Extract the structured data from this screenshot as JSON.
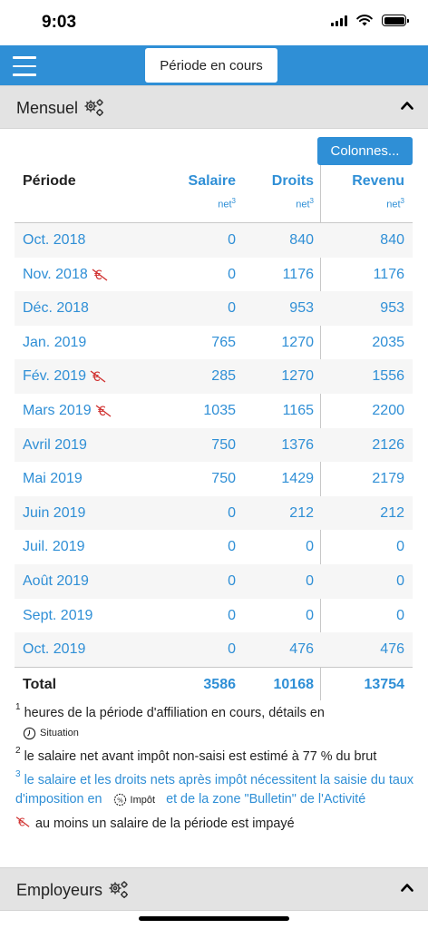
{
  "status": {
    "time": "9:03"
  },
  "nav": {
    "period_button": "Période en cours"
  },
  "sections": {
    "mensuel": {
      "title": "Mensuel"
    },
    "employeurs": {
      "title": "Employeurs"
    }
  },
  "columns_button": "Colonnes...",
  "table": {
    "headers": {
      "period": "Période",
      "salaire": "Salaire",
      "droits": "Droits",
      "revenu": "Revenu",
      "sub": "net",
      "sub_sup": "3"
    },
    "rows": [
      {
        "period": "Oct. 2018",
        "unpaid": false,
        "salaire": "0",
        "droits": "840",
        "revenu": "840"
      },
      {
        "period": "Nov. 2018",
        "unpaid": true,
        "salaire": "0",
        "droits": "1176",
        "revenu": "1176"
      },
      {
        "period": "Déc. 2018",
        "unpaid": false,
        "salaire": "0",
        "droits": "953",
        "revenu": "953"
      },
      {
        "period": "Jan. 2019",
        "unpaid": false,
        "salaire": "765",
        "droits": "1270",
        "revenu": "2035"
      },
      {
        "period": "Fév. 2019",
        "unpaid": true,
        "salaire": "285",
        "droits": "1270",
        "revenu": "1556"
      },
      {
        "period": "Mars 2019",
        "unpaid": true,
        "salaire": "1035",
        "droits": "1165",
        "revenu": "2200"
      },
      {
        "period": "Avril 2019",
        "unpaid": false,
        "salaire": "750",
        "droits": "1376",
        "revenu": "2126"
      },
      {
        "period": "Mai 2019",
        "unpaid": false,
        "salaire": "750",
        "droits": "1429",
        "revenu": "2179"
      },
      {
        "period": "Juin 2019",
        "unpaid": false,
        "salaire": "0",
        "droits": "212",
        "revenu": "212"
      },
      {
        "period": "Juil. 2019",
        "unpaid": false,
        "salaire": "0",
        "droits": "0",
        "revenu": "0"
      },
      {
        "period": "Août 2019",
        "unpaid": false,
        "salaire": "0",
        "droits": "0",
        "revenu": "0"
      },
      {
        "period": "Sept. 2019",
        "unpaid": false,
        "salaire": "0",
        "droits": "0",
        "revenu": "0"
      },
      {
        "period": "Oct. 2019",
        "unpaid": false,
        "salaire": "0",
        "droits": "476",
        "revenu": "476"
      }
    ],
    "total": {
      "label": "Total",
      "salaire": "3586",
      "droits": "10168",
      "revenu": "13754"
    }
  },
  "notes": {
    "n1_sup": "1",
    "n1_text": "heures de la période d'affiliation en cours, détails en",
    "n1_button": "Situation",
    "n2_sup": "2",
    "n2_text": "le salaire net avant impôt non-saisi est estimé à 77 % du brut",
    "n3_sup": "3",
    "n3_text_a": "le salaire et les droits nets après impôt nécessitent la saisie du taux d'imposition en",
    "n3_button": "Impôt",
    "n3_text_b": "et de la zone \"Bulletin\" de l'Activité",
    "n4_text": "au moins un salaire de la période est impayé"
  },
  "colors": {
    "accent": "#2f8fd6",
    "unpaid": "#d0302f",
    "header_bg": "#e3e3e3"
  }
}
